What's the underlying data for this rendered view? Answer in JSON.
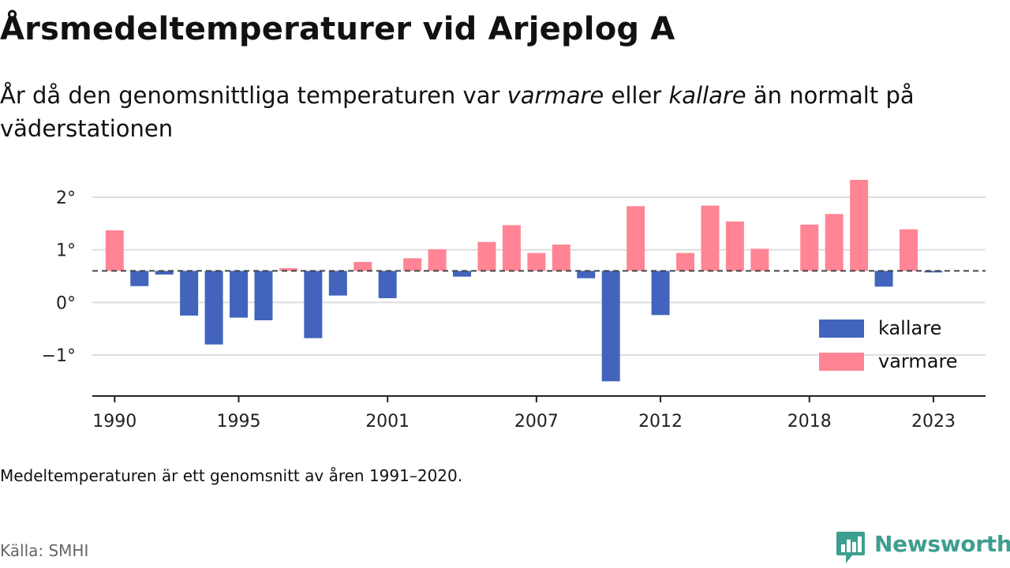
{
  "header": {
    "title": "Årsmedeltemperaturer vid Arjeplog A",
    "subtitle_parts": [
      "År då den genomsnittliga temperaturen var ",
      "varmare",
      " eller ",
      "kallare",
      " än normalt på väderstationen"
    ]
  },
  "footer": {
    "note": "Medeltemperaturen är ett genomsnitt av åren 1991–2020.",
    "source": "Källa: SMHI",
    "brand": "Newsworthy",
    "brand_icon": "bar-chart-speech-bubble-icon"
  },
  "colors": {
    "kallare": "#4264bd",
    "varmare": "#ff8595",
    "baseline": "#444444",
    "grid": "#dddddd",
    "axis": "#222222",
    "brand": "#3e9e8f"
  },
  "chart_data": {
    "type": "bar",
    "baseline": 0.6,
    "ylim": [
      -1.75,
      2.45
    ],
    "xlim": [
      1989.1,
      2025.1
    ],
    "y_ticks": [
      {
        "value": 2,
        "label": "2°"
      },
      {
        "value": 1,
        "label": "1°"
      },
      {
        "value": 0,
        "label": "0°"
      },
      {
        "value": -1,
        "label": "−1°"
      }
    ],
    "x_ticks": [
      1990,
      1995,
      2001,
      2007,
      2012,
      2018,
      2023
    ],
    "grid": true,
    "legend": {
      "placement": "bottom-right",
      "entries": [
        {
          "key": "kallare",
          "label": "kallare"
        },
        {
          "key": "varmare",
          "label": "varmare"
        }
      ]
    },
    "x": [
      1990,
      1991,
      1992,
      1993,
      1994,
      1995,
      1996,
      1997,
      1998,
      1999,
      2000,
      2001,
      2002,
      2003,
      2004,
      2005,
      2006,
      2007,
      2008,
      2009,
      2010,
      2011,
      2012,
      2013,
      2014,
      2015,
      2016,
      2018,
      2019,
      2020,
      2021,
      2022,
      2023
    ],
    "values": [
      1.37,
      0.31,
      0.53,
      -0.25,
      -0.8,
      -0.29,
      -0.34,
      0.65,
      -0.68,
      0.13,
      0.77,
      0.08,
      0.84,
      1.01,
      0.49,
      1.15,
      1.47,
      0.94,
      1.1,
      0.46,
      -1.5,
      1.83,
      -0.24,
      0.94,
      1.84,
      1.54,
      1.02,
      1.48,
      1.68,
      2.33,
      0.3,
      1.39,
      0.57
    ]
  }
}
